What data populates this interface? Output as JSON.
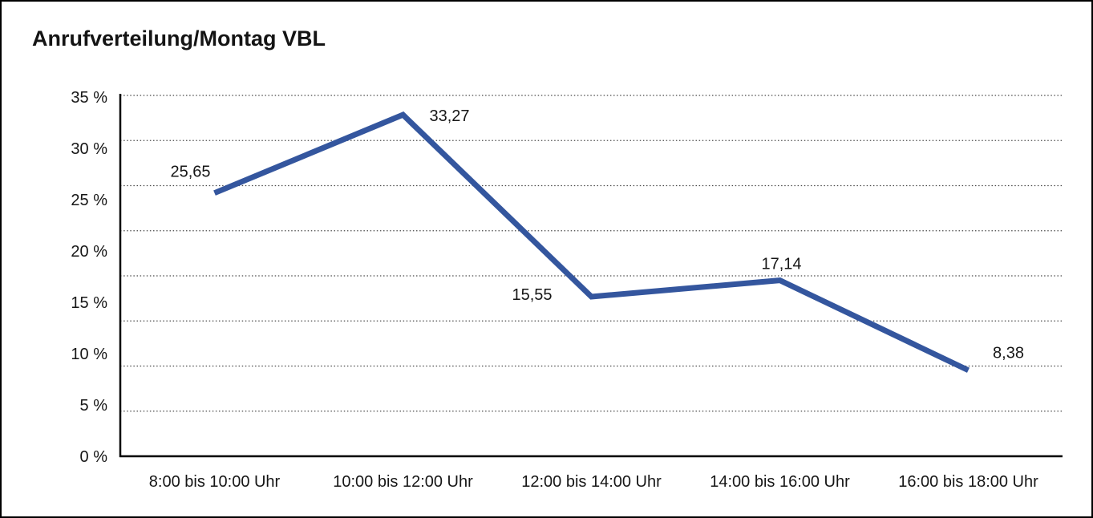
{
  "title": "Anrufverteilung/Montag VBL",
  "chart_data": {
    "type": "line",
    "title": "Anrufverteilung/Montag VBL",
    "categories": [
      "8:00 bis 10:00 Uhr",
      "10:00 bis 12:00 Uhr",
      "12:00 bis 14:00 Uhr",
      "14:00 bis 16:00 Uhr",
      "16:00 bis 18:00 Uhr"
    ],
    "series": [
      {
        "name": "Anrufverteilung Montag VBL",
        "values": [
          25.65,
          33.27,
          15.55,
          17.14,
          8.38
        ],
        "point_labels": [
          "25,65",
          "33,27",
          "15,55",
          "17,14",
          "8,38"
        ]
      }
    ],
    "xlabel": "",
    "ylabel": "",
    "ylim": [
      0,
      35
    ],
    "ytick_step": 5,
    "ytick_labels": [
      "0 %",
      "5 %",
      "10 %",
      "15 %",
      "20 %",
      "25 %",
      "30 %",
      "35 %"
    ],
    "grid": "horizontal-dotted",
    "legend_position": "none",
    "line_color": "#34569E",
    "gridline_color": "#4a4a4a",
    "axis_color": "#000000",
    "text_color": "#161616"
  }
}
